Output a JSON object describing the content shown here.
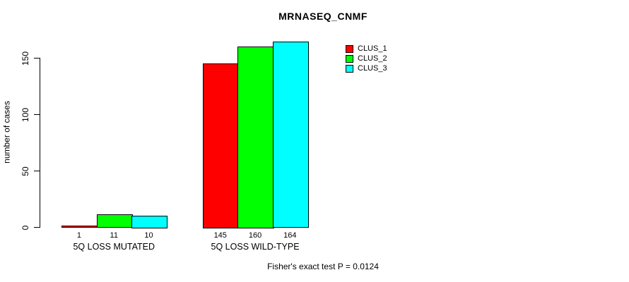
{
  "chart_data": {
    "type": "bar",
    "title": "MRNASEQ_CNMF",
    "xlabel": "",
    "ylabel": "number of cases",
    "ylim": [
      0,
      150
    ],
    "yticks": [
      0,
      50,
      100,
      150
    ],
    "grid": false,
    "legend_position": "right",
    "categories": [
      "5Q LOSS MUTATED",
      "5Q LOSS WILD-TYPE"
    ],
    "series": [
      {
        "name": "CLUS_1",
        "color": "#FF0000",
        "values": [
          1,
          145
        ]
      },
      {
        "name": "CLUS_2",
        "color": "#00FF00",
        "values": [
          11,
          160
        ]
      },
      {
        "name": "CLUS_3",
        "color": "#00FFFF",
        "values": [
          10,
          164
        ]
      }
    ],
    "annotation": "Fisher's exact test P = 0.0124",
    "text_color": "#000000",
    "background_color": "#FFFFFF"
  }
}
